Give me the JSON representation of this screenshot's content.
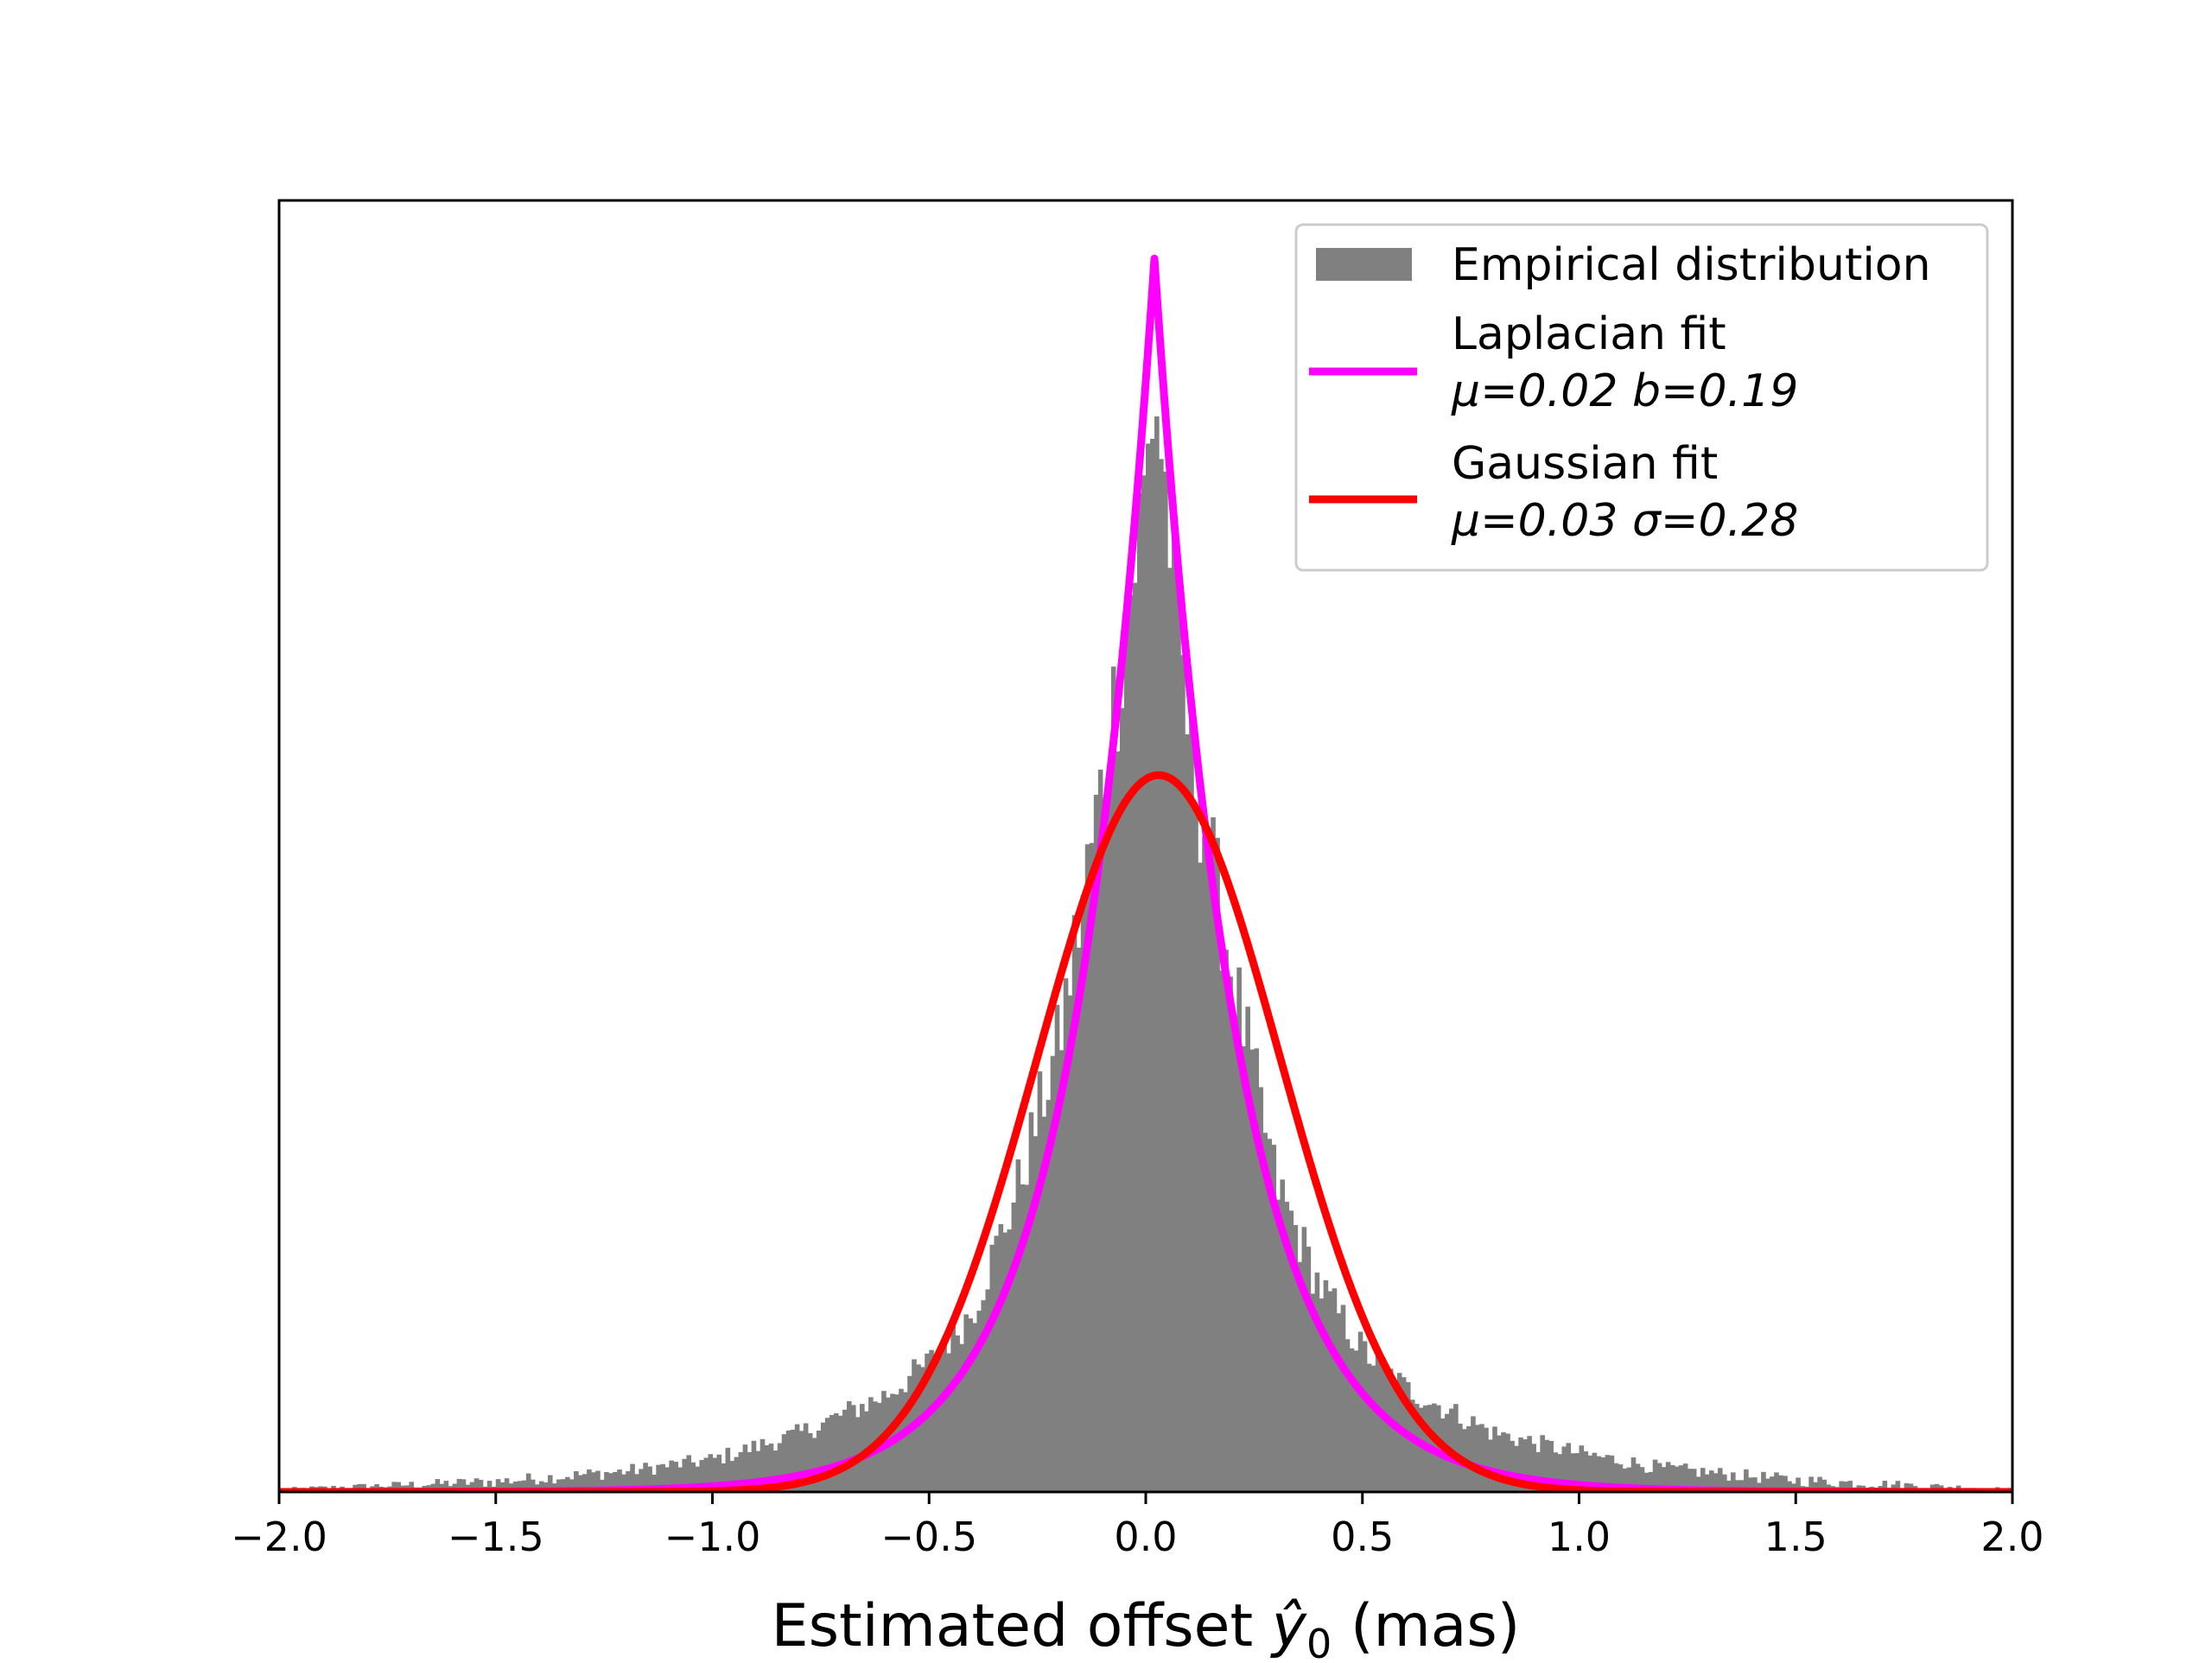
{
  "chart_data": {
    "type": "histogram",
    "title": "",
    "xlabel": "Estimated offset ŷ₀ (mas)",
    "xlabel_parts": {
      "prefix": "Estimated offset ",
      "symbol": "ŷ",
      "subscript": "0",
      "suffix": " (mas)"
    },
    "ylabel": "",
    "xlim": [
      -2.0,
      2.0
    ],
    "ylim": [
      0,
      1.0
    ],
    "y_ticks_visible": false,
    "grid": false,
    "legend_position": "top-right",
    "x_ticks": [
      "−2.0",
      "−1.5",
      "−1.0",
      "−0.5",
      "0.0",
      "0.5",
      "1.0",
      "1.5",
      "2.0"
    ],
    "x_tick_values": [
      -2.0,
      -1.5,
      -1.0,
      -0.5,
      0.0,
      0.5,
      1.0,
      1.5,
      2.0
    ],
    "histogram": {
      "name": "Empirical distribution",
      "color": "#808080",
      "bin_range": [
        -2.0,
        2.0
      ],
      "bin_count": 400,
      "envelope": {
        "x": [
          -2.0,
          -1.5,
          -1.2,
          -1.0,
          -0.8,
          -0.6,
          -0.5,
          -0.4,
          -0.3,
          -0.2,
          -0.1,
          0.0,
          0.02,
          0.05,
          0.1,
          0.2,
          0.3,
          0.4,
          0.5,
          0.6,
          0.8,
          1.0,
          1.2,
          1.5,
          2.0
        ],
        "height": [
          0.002,
          0.008,
          0.016,
          0.025,
          0.045,
          0.075,
          0.1,
          0.14,
          0.23,
          0.35,
          0.55,
          0.78,
          0.86,
          0.76,
          0.58,
          0.4,
          0.24,
          0.16,
          0.11,
          0.08,
          0.046,
          0.03,
          0.018,
          0.009,
          0.002
        ]
      }
    },
    "series": [
      {
        "name": "Laplacian fit",
        "params_label": {
          "mu": "μ=0.02",
          "second": "b=0.19"
        },
        "distribution": "laplace",
        "mu": 0.02,
        "scale": 0.19,
        "peak": 0.955,
        "color": "#ff00ff"
      },
      {
        "name": "Gaussian fit",
        "params_label": {
          "mu": "μ=0.03",
          "second": "σ=0.28"
        },
        "distribution": "normal",
        "mu": 0.03,
        "scale": 0.28,
        "peak": 0.555,
        "color": "#ff0000"
      }
    ]
  }
}
